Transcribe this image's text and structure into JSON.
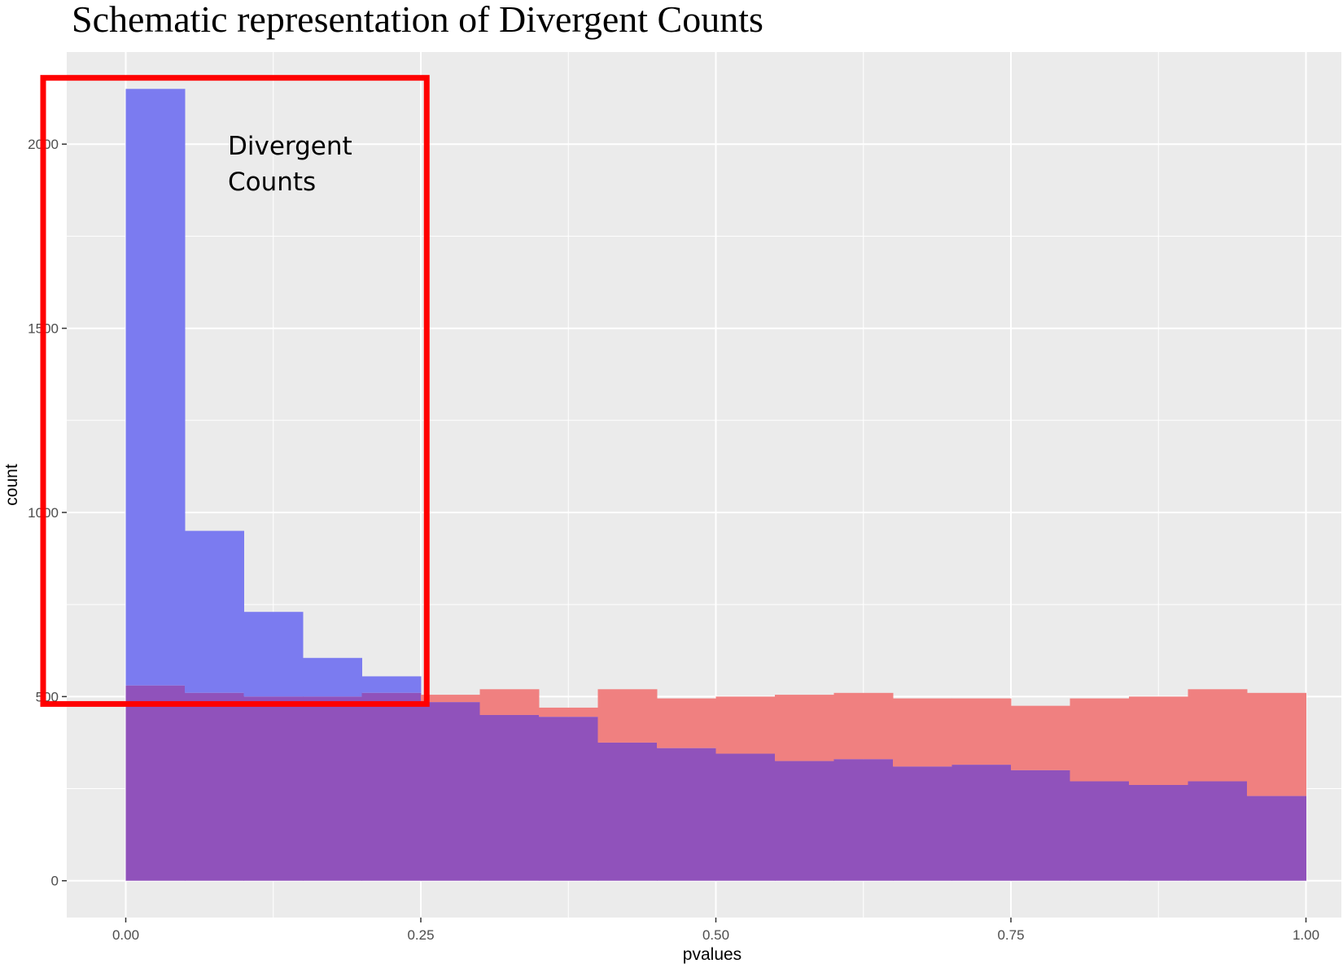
{
  "chart_data": {
    "type": "histogram",
    "title": "Schematic representation of Divergent Counts",
    "xlabel": "pvalues",
    "ylabel": "count",
    "xlim": [
      -0.05,
      1.03
    ],
    "ylim": [
      -100,
      2250
    ],
    "x_ticks": [
      "0.00",
      "0.25",
      "0.50",
      "0.75",
      "1.00"
    ],
    "y_ticks": [
      "0",
      "500",
      "1000",
      "1500",
      "2000"
    ],
    "grid": true,
    "legend": "none",
    "bin_edges": [
      0.0,
      0.05,
      0.1,
      0.15,
      0.2,
      0.25,
      0.3,
      0.35,
      0.4,
      0.45,
      0.5,
      0.55,
      0.6,
      0.65,
      0.7,
      0.75,
      0.8,
      0.85,
      0.9,
      0.95,
      1.0
    ],
    "series": [
      {
        "color": "#f08080",
        "values": [
          530,
          510,
          500,
          500,
          510,
          505,
          520,
          470,
          520,
          495,
          500,
          505,
          510,
          495,
          495,
          475,
          495,
          500,
          520,
          510
        ]
      },
      {
        "color": "#7b7bf0",
        "values": [
          2150,
          950,
          730,
          605,
          555,
          485,
          450,
          445,
          375,
          360,
          345,
          325,
          330,
          310,
          315,
          300,
          270,
          260,
          270,
          230
        ]
      }
    ],
    "overlap_color": "#9052bb",
    "annotation": {
      "text": [
        "Divergent",
        "Counts"
      ],
      "box_x": [
        -0.07,
        0.255
      ],
      "box_y": [
        480,
        2180
      ],
      "box_color": "#ff0000"
    }
  }
}
